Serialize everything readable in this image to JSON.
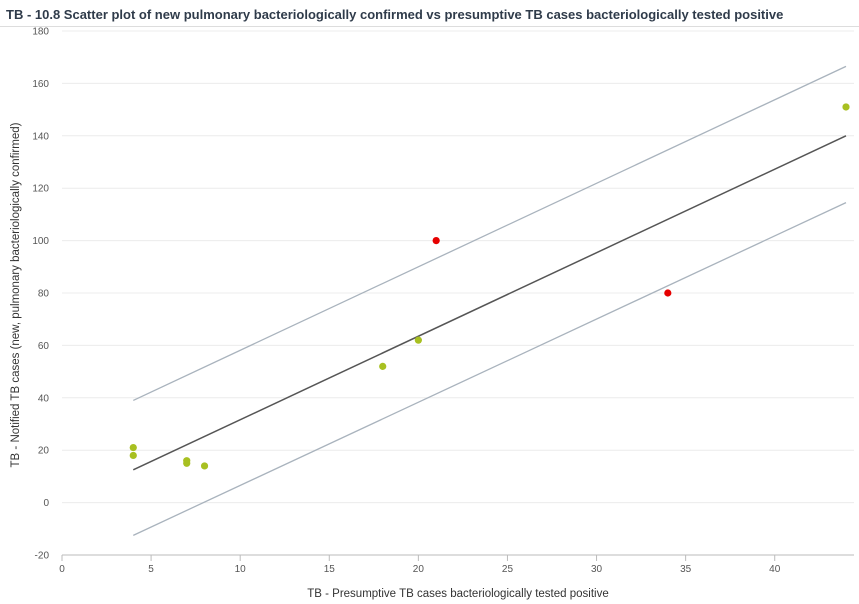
{
  "title": "TB - 10.8 Scatter plot of new pulmonary bacteriologically confirmed vs presumptive TB cases bacteriologically tested positive",
  "chart_data": {
    "type": "scatter",
    "xlabel": "TB - Presumptive TB cases bacteriologically tested positive",
    "ylabel": "TB - Notified TB cases (new, pulmonary bacteriologically confirmed)",
    "xlim": [
      0,
      44
    ],
    "ylim": [
      -20,
      180
    ],
    "x_ticks": [
      0,
      5,
      10,
      15,
      20,
      25,
      30,
      35,
      40
    ],
    "y_ticks": [
      -20,
      0,
      20,
      40,
      60,
      80,
      100,
      120,
      140,
      160,
      180
    ],
    "grid": true,
    "colors": {
      "normal": "#a8c021",
      "outlier": "#e60000",
      "regression": "#555555",
      "threshold": "#a9b3bd"
    },
    "points": [
      {
        "x": 4,
        "y": 21,
        "outlier": false
      },
      {
        "x": 4,
        "y": 18,
        "outlier": false
      },
      {
        "x": 7,
        "y": 16,
        "outlier": false
      },
      {
        "x": 7,
        "y": 15,
        "outlier": false
      },
      {
        "x": 8,
        "y": 14,
        "outlier": false
      },
      {
        "x": 18,
        "y": 52,
        "outlier": false
      },
      {
        "x": 20,
        "y": 62,
        "outlier": false
      },
      {
        "x": 21,
        "y": 100,
        "outlier": true
      },
      {
        "x": 34,
        "y": 80,
        "outlier": true
      },
      {
        "x": 44,
        "y": 151,
        "outlier": false
      }
    ],
    "regression_line": {
      "x": [
        4,
        44
      ],
      "y": [
        12.5,
        140
      ]
    },
    "upper_threshold": {
      "x": [
        4,
        44
      ],
      "y": [
        39,
        166.5
      ]
    },
    "lower_threshold": {
      "x": [
        4,
        44
      ],
      "y": [
        -12.5,
        114.5
      ]
    }
  }
}
